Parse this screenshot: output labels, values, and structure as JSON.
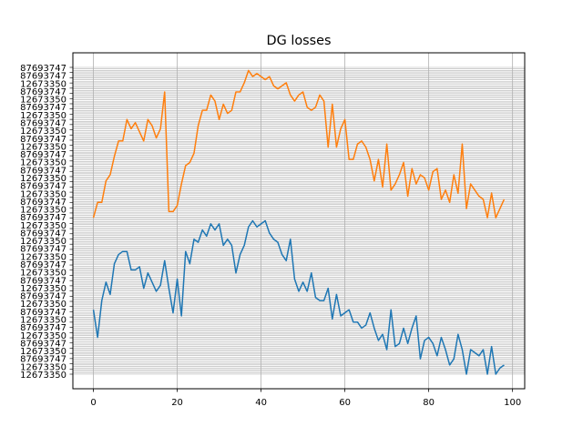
{
  "chart_data": {
    "type": "line",
    "title": "DG losses",
    "xlabel": "",
    "ylabel": "",
    "x_ticks": [
      0,
      20,
      40,
      60,
      80,
      100
    ],
    "xlim": [
      -4.9,
      102.9
    ],
    "ylim": [
      0,
      1
    ],
    "grid": true,
    "legend": "none",
    "y_tick_label_sample": [
      "87693747",
      "12673350"
    ],
    "series": [
      {
        "color": "#ff7f0e",
        "values": [
          0.51,
          0.56,
          0.56,
          0.63,
          0.65,
          0.71,
          0.76,
          0.76,
          0.83,
          0.8,
          0.82,
          0.79,
          0.76,
          0.83,
          0.81,
          0.77,
          0.8,
          0.92,
          0.53,
          0.53,
          0.55,
          0.62,
          0.68,
          0.69,
          0.72,
          0.81,
          0.86,
          0.86,
          0.91,
          0.89,
          0.83,
          0.88,
          0.85,
          0.86,
          0.92,
          0.92,
          0.95,
          0.99,
          0.97,
          0.98,
          0.97,
          0.96,
          0.97,
          0.94,
          0.93,
          0.94,
          0.95,
          0.91,
          0.89,
          0.91,
          0.92,
          0.87,
          0.86,
          0.87,
          0.91,
          0.89,
          0.74,
          0.88,
          0.74,
          0.8,
          0.83,
          0.7,
          0.7,
          0.75,
          0.76,
          0.74,
          0.7,
          0.63,
          0.7,
          0.61,
          0.75,
          0.6,
          0.62,
          0.65,
          0.69,
          0.58,
          0.67,
          0.62,
          0.65,
          0.64,
          0.6,
          0.66,
          0.67,
          0.57,
          0.6,
          0.56,
          0.65,
          0.59,
          0.75,
          0.54,
          0.62,
          0.6,
          0.58,
          0.57,
          0.51,
          0.59,
          0.51,
          0.54,
          0.57
        ]
      },
      {
        "color": "#1f77b4",
        "values": [
          0.21,
          0.12,
          0.24,
          0.3,
          0.26,
          0.36,
          0.39,
          0.4,
          0.4,
          0.34,
          0.34,
          0.35,
          0.28,
          0.33,
          0.3,
          0.27,
          0.29,
          0.37,
          0.28,
          0.2,
          0.31,
          0.19,
          0.4,
          0.36,
          0.44,
          0.43,
          0.47,
          0.45,
          0.49,
          0.47,
          0.49,
          0.42,
          0.44,
          0.42,
          0.33,
          0.39,
          0.42,
          0.48,
          0.5,
          0.48,
          0.49,
          0.5,
          0.46,
          0.44,
          0.43,
          0.39,
          0.37,
          0.44,
          0.31,
          0.27,
          0.3,
          0.27,
          0.33,
          0.25,
          0.24,
          0.24,
          0.28,
          0.18,
          0.26,
          0.19,
          0.2,
          0.21,
          0.17,
          0.17,
          0.15,
          0.16,
          0.2,
          0.15,
          0.11,
          0.13,
          0.08,
          0.21,
          0.09,
          0.1,
          0.15,
          0.1,
          0.15,
          0.19,
          0.05,
          0.11,
          0.12,
          0.1,
          0.06,
          0.12,
          0.08,
          0.03,
          0.05,
          0.13,
          0.08,
          0.0,
          0.08,
          0.07,
          0.06,
          0.08,
          0.0,
          0.09,
          0.0,
          0.02,
          0.03
        ]
      }
    ]
  }
}
